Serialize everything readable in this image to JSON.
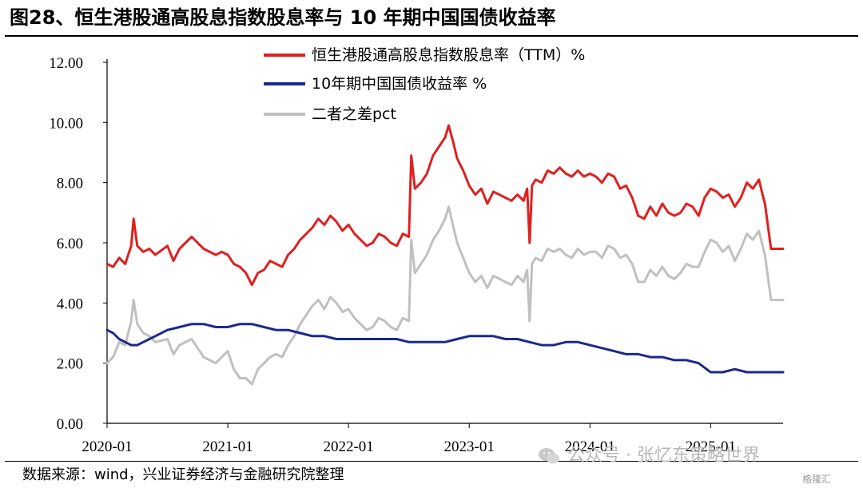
{
  "header": {
    "title": "图28、恒生港股通高股息指数股息率与 10 年期中国国债收益率"
  },
  "footer": {
    "source": "数据来源：wind，兴业证券经济与金融研究院整理",
    "watermark": "公众号 · 张忆东策略世界",
    "corner_logo": "格隆汇"
  },
  "chart_data": {
    "type": "line",
    "title": "",
    "xlabel": "",
    "ylabel": "",
    "ylim": [
      0,
      12
    ],
    "yticks": [
      "0.00",
      "2.00",
      "4.00",
      "6.00",
      "8.00",
      "10.00",
      "12.00"
    ],
    "xlim": [
      2020.0,
      2025.6
    ],
    "xticks": [
      {
        "label": "2020-01",
        "x": 2020.0
      },
      {
        "label": "2021-01",
        "x": 2021.0
      },
      {
        "label": "2022-01",
        "x": 2022.0
      },
      {
        "label": "2023-01",
        "x": 2023.0
      },
      {
        "label": "2024-01",
        "x": 2024.0
      },
      {
        "label": "2025-01",
        "x": 2025.0
      }
    ],
    "grid": false,
    "legend_position": "top-center",
    "series": [
      {
        "name": "恒生港股通高股息指数股息率（TTM）%",
        "color": "#e02020",
        "x": [
          2020.0,
          2020.05,
          2020.1,
          2020.15,
          2020.2,
          2020.22,
          2020.25,
          2020.3,
          2020.35,
          2020.4,
          2020.5,
          2020.55,
          2020.6,
          2020.7,
          2020.75,
          2020.8,
          2020.9,
          2020.95,
          2021.0,
          2021.05,
          2021.1,
          2021.15,
          2021.2,
          2021.25,
          2021.3,
          2021.35,
          2021.4,
          2021.45,
          2021.5,
          2021.55,
          2021.6,
          2021.65,
          2021.7,
          2021.75,
          2021.8,
          2021.85,
          2021.9,
          2021.95,
          2022.0,
          2022.05,
          2022.1,
          2022.15,
          2022.2,
          2022.25,
          2022.3,
          2022.35,
          2022.4,
          2022.45,
          2022.5,
          2022.52,
          2022.55,
          2022.6,
          2022.65,
          2022.7,
          2022.75,
          2022.8,
          2022.83,
          2022.87,
          2022.9,
          2022.95,
          2023.0,
          2023.05,
          2023.1,
          2023.15,
          2023.2,
          2023.25,
          2023.3,
          2023.35,
          2023.4,
          2023.45,
          2023.48,
          2023.5,
          2023.52,
          2023.55,
          2023.6,
          2023.65,
          2023.7,
          2023.75,
          2023.8,
          2023.85,
          2023.9,
          2023.95,
          2024.0,
          2024.05,
          2024.1,
          2024.15,
          2024.2,
          2024.25,
          2024.3,
          2024.35,
          2024.4,
          2024.45,
          2024.5,
          2024.55,
          2024.6,
          2024.65,
          2024.7,
          2024.75,
          2024.8,
          2024.85,
          2024.9,
          2024.95,
          2025.0,
          2025.05,
          2025.1,
          2025.15,
          2025.2,
          2025.25,
          2025.3,
          2025.35,
          2025.4,
          2025.43,
          2025.45,
          2025.5,
          2025.55,
          2025.6
        ],
        "values": [
          5.3,
          5.2,
          5.5,
          5.3,
          5.9,
          6.8,
          5.9,
          5.7,
          5.8,
          5.6,
          5.9,
          5.4,
          5.8,
          6.2,
          6.0,
          5.8,
          5.6,
          5.7,
          5.6,
          5.3,
          5.2,
          5.0,
          4.6,
          5.0,
          5.1,
          5.4,
          5.3,
          5.2,
          5.6,
          5.8,
          6.1,
          6.3,
          6.5,
          6.8,
          6.6,
          6.9,
          6.7,
          6.4,
          6.6,
          6.3,
          6.1,
          5.9,
          6.0,
          6.3,
          6.2,
          6.0,
          5.9,
          6.3,
          6.2,
          8.9,
          7.8,
          8.0,
          8.3,
          8.9,
          9.2,
          9.5,
          9.9,
          9.3,
          8.8,
          8.4,
          7.9,
          7.6,
          7.8,
          7.3,
          7.7,
          7.6,
          7.5,
          7.4,
          7.6,
          7.4,
          7.8,
          6.0,
          7.9,
          8.1,
          8.0,
          8.4,
          8.3,
          8.5,
          8.3,
          8.2,
          8.4,
          8.2,
          8.3,
          8.2,
          8.0,
          8.3,
          8.2,
          7.8,
          7.9,
          7.5,
          6.9,
          6.8,
          7.2,
          6.9,
          7.3,
          7.0,
          6.9,
          7.0,
          7.3,
          7.2,
          6.9,
          7.5,
          7.8,
          7.7,
          7.5,
          7.6,
          7.2,
          7.5,
          8.0,
          7.8,
          8.1,
          7.6,
          7.3,
          5.8,
          5.8,
          5.8
        ],
        "labels_hidden": true
      },
      {
        "name": "10年期中国国债收益率 %",
        "color": "#1a2a8c",
        "x": [
          2020.0,
          2020.05,
          2020.1,
          2020.15,
          2020.2,
          2020.25,
          2020.3,
          2020.35,
          2020.4,
          2020.5,
          2020.6,
          2020.7,
          2020.8,
          2020.9,
          2021.0,
          2021.1,
          2021.2,
          2021.3,
          2021.4,
          2021.5,
          2021.6,
          2021.7,
          2021.8,
          2021.9,
          2022.0,
          2022.1,
          2022.2,
          2022.3,
          2022.4,
          2022.5,
          2022.6,
          2022.7,
          2022.8,
          2022.9,
          2023.0,
          2023.1,
          2023.2,
          2023.3,
          2023.4,
          2023.5,
          2023.6,
          2023.7,
          2023.8,
          2023.9,
          2024.0,
          2024.1,
          2024.2,
          2024.3,
          2024.4,
          2024.5,
          2024.6,
          2024.7,
          2024.8,
          2024.9,
          2025.0,
          2025.1,
          2025.2,
          2025.3,
          2025.4,
          2025.5,
          2025.6
        ],
        "values": [
          3.1,
          3.0,
          2.8,
          2.7,
          2.6,
          2.6,
          2.7,
          2.8,
          2.9,
          3.1,
          3.2,
          3.3,
          3.3,
          3.2,
          3.2,
          3.3,
          3.3,
          3.2,
          3.1,
          3.1,
          3.0,
          2.9,
          2.9,
          2.8,
          2.8,
          2.8,
          2.8,
          2.8,
          2.8,
          2.7,
          2.7,
          2.7,
          2.7,
          2.8,
          2.9,
          2.9,
          2.9,
          2.8,
          2.8,
          2.7,
          2.6,
          2.6,
          2.7,
          2.7,
          2.6,
          2.5,
          2.4,
          2.3,
          2.3,
          2.2,
          2.2,
          2.1,
          2.1,
          2.0,
          1.7,
          1.7,
          1.8,
          1.7,
          1.7,
          1.7,
          1.7
        ]
      },
      {
        "name": "二者之差pct",
        "color": "#c0c0c0",
        "x": [
          2020.0,
          2020.05,
          2020.1,
          2020.15,
          2020.2,
          2020.22,
          2020.25,
          2020.3,
          2020.35,
          2020.4,
          2020.5,
          2020.55,
          2020.6,
          2020.7,
          2020.75,
          2020.8,
          2020.9,
          2020.95,
          2021.0,
          2021.05,
          2021.1,
          2021.15,
          2021.2,
          2021.25,
          2021.3,
          2021.35,
          2021.4,
          2021.45,
          2021.5,
          2021.55,
          2021.6,
          2021.65,
          2021.7,
          2021.75,
          2021.8,
          2021.85,
          2021.9,
          2021.95,
          2022.0,
          2022.05,
          2022.1,
          2022.15,
          2022.2,
          2022.25,
          2022.3,
          2022.35,
          2022.4,
          2022.45,
          2022.5,
          2022.52,
          2022.55,
          2022.6,
          2022.65,
          2022.7,
          2022.75,
          2022.8,
          2022.83,
          2022.87,
          2022.9,
          2022.95,
          2023.0,
          2023.05,
          2023.1,
          2023.15,
          2023.2,
          2023.25,
          2023.3,
          2023.35,
          2023.4,
          2023.45,
          2023.48,
          2023.5,
          2023.52,
          2023.55,
          2023.6,
          2023.65,
          2023.7,
          2023.75,
          2023.8,
          2023.85,
          2023.9,
          2023.95,
          2024.0,
          2024.05,
          2024.1,
          2024.15,
          2024.2,
          2024.25,
          2024.3,
          2024.35,
          2024.4,
          2024.45,
          2024.5,
          2024.55,
          2024.6,
          2024.65,
          2024.7,
          2024.75,
          2024.8,
          2024.85,
          2024.9,
          2024.95,
          2025.0,
          2025.05,
          2025.1,
          2025.15,
          2025.2,
          2025.25,
          2025.3,
          2025.35,
          2025.4,
          2025.43,
          2025.45,
          2025.5,
          2025.55,
          2025.6
        ],
        "values": [
          2.0,
          2.2,
          2.7,
          2.6,
          3.4,
          4.1,
          3.3,
          3.0,
          2.9,
          2.7,
          2.8,
          2.3,
          2.6,
          2.8,
          2.5,
          2.2,
          2.0,
          2.2,
          2.4,
          1.8,
          1.5,
          1.5,
          1.3,
          1.8,
          2.0,
          2.2,
          2.3,
          2.2,
          2.6,
          2.9,
          3.3,
          3.6,
          3.9,
          4.1,
          3.8,
          4.2,
          4.0,
          3.7,
          3.8,
          3.5,
          3.3,
          3.1,
          3.2,
          3.5,
          3.4,
          3.2,
          3.1,
          3.5,
          3.4,
          6.1,
          5.0,
          5.3,
          5.6,
          6.1,
          6.4,
          6.8,
          7.2,
          6.5,
          6.0,
          5.5,
          5.0,
          4.7,
          4.9,
          4.5,
          4.9,
          4.8,
          4.7,
          4.6,
          4.9,
          4.7,
          5.1,
          3.4,
          5.3,
          5.5,
          5.4,
          5.8,
          5.7,
          5.8,
          5.6,
          5.5,
          5.8,
          5.6,
          5.7,
          5.7,
          5.5,
          5.9,
          5.8,
          5.5,
          5.6,
          5.3,
          4.7,
          4.7,
          5.1,
          4.9,
          5.2,
          4.9,
          4.8,
          5.0,
          5.3,
          5.2,
          5.2,
          5.7,
          6.1,
          6.0,
          5.7,
          5.9,
          5.4,
          5.8,
          6.3,
          6.1,
          6.4,
          5.9,
          5.6,
          4.1,
          4.1,
          4.1
        ]
      }
    ]
  }
}
